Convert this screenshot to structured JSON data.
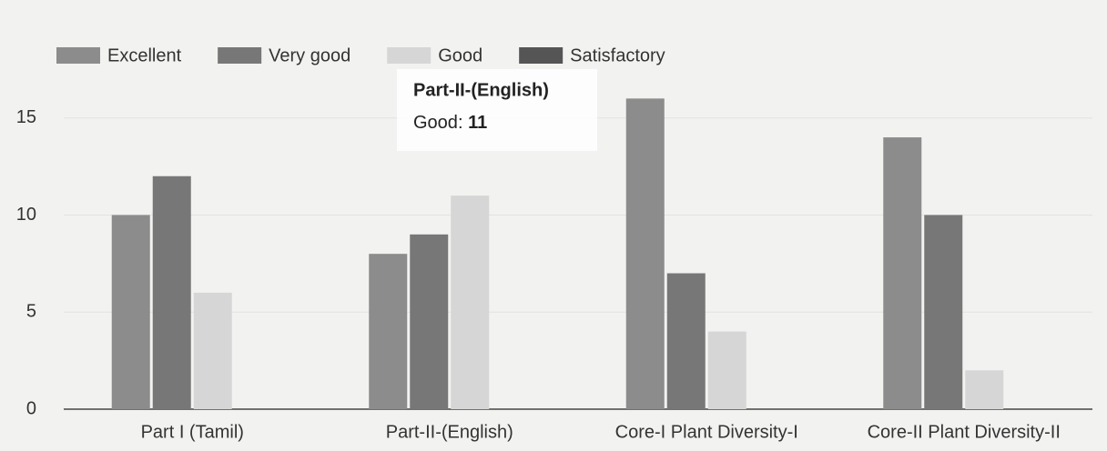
{
  "chart_data": {
    "type": "bar",
    "categories": [
      "Part I (Tamil)",
      "Part-II-(English)",
      "Core-I Plant Diversity-I",
      "Core-II Plant Diversity-II"
    ],
    "series": [
      {
        "name": "Excellent",
        "color": "#8c8c8c",
        "values": [
          10,
          8,
          16,
          14
        ]
      },
      {
        "name": "Very good",
        "color": "#777777",
        "values": [
          12,
          9,
          7,
          10
        ]
      },
      {
        "name": "Good",
        "color": "#d6d6d6",
        "values": [
          6,
          11,
          4,
          2
        ]
      },
      {
        "name": "Satisfactory",
        "color": "#555555",
        "values": [
          0,
          0,
          0,
          0
        ]
      }
    ],
    "ylim": [
      0,
      17
    ],
    "yticks": [
      0,
      5,
      10,
      15
    ],
    "grid": true,
    "legend": "top-left"
  }
}
